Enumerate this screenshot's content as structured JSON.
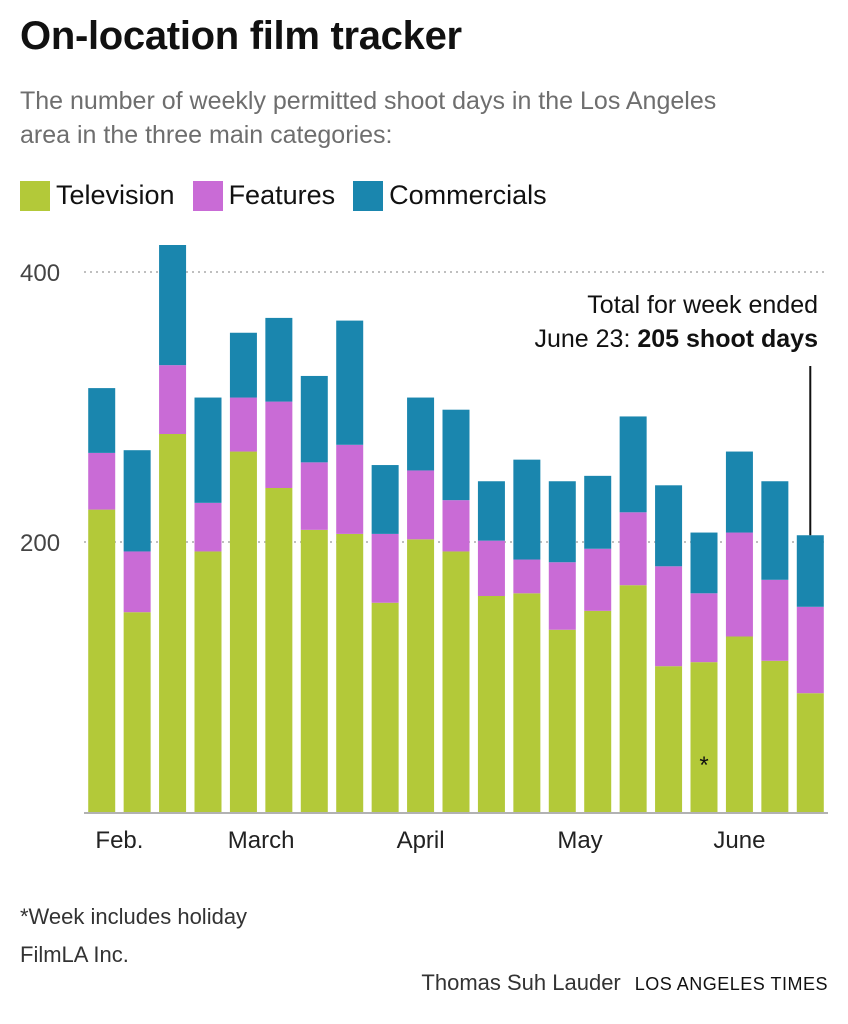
{
  "header": {
    "title": "On-location film tracker",
    "subtitle": "The number of weekly permitted shoot days in the Los Angeles area in the three main categories:"
  },
  "colors": {
    "television": "#b3c939",
    "features": "#c96bd6",
    "commercials": "#1a86ae",
    "grid": "#aaaaaa",
    "axis": "#999999"
  },
  "legend": [
    {
      "label": "Television",
      "color": "#b3c939"
    },
    {
      "label": "Features",
      "color": "#c96bd6"
    },
    {
      "label": "Commercials",
      "color": "#1a86ae"
    }
  ],
  "annotation": {
    "line1": "Total for week ended",
    "line2_prefix": "June 23: ",
    "line2_bold": "205 shoot days"
  },
  "footnote_marker": "*",
  "footer": {
    "footnote": "*Week includes holiday",
    "source": "FilmLA Inc.",
    "byline": "Thomas Suh Lauder",
    "brand": "LOS ANGELES TIMES"
  },
  "chart_data": {
    "type": "bar",
    "stacked": true,
    "ylim": [
      0,
      400
    ],
    "yticks": [
      200,
      400
    ],
    "grid": true,
    "legend_position": "top-left",
    "month_labels": [
      {
        "label": "Feb.",
        "index": 0.5
      },
      {
        "label": "March",
        "index": 4.5
      },
      {
        "label": "April",
        "index": 9
      },
      {
        "label": "May",
        "index": 13.5
      },
      {
        "label": "June",
        "index": 18
      }
    ],
    "holiday_index": 17,
    "series": [
      {
        "name": "Television",
        "values": [
          224,
          148,
          280,
          193,
          267,
          240,
          209,
          206,
          155,
          202,
          193,
          160,
          162,
          135,
          149,
          168,
          108,
          111,
          130,
          112,
          88
        ]
      },
      {
        "name": "Features",
        "values": [
          42,
          45,
          51,
          36,
          40,
          64,
          50,
          66,
          51,
          51,
          38,
          41,
          25,
          50,
          46,
          54,
          74,
          51,
          77,
          60,
          64
        ]
      },
      {
        "name": "Commercials",
        "values": [
          48,
          75,
          89,
          78,
          48,
          62,
          64,
          92,
          51,
          54,
          67,
          44,
          74,
          60,
          54,
          71,
          60,
          45,
          60,
          73,
          53
        ]
      }
    ]
  }
}
